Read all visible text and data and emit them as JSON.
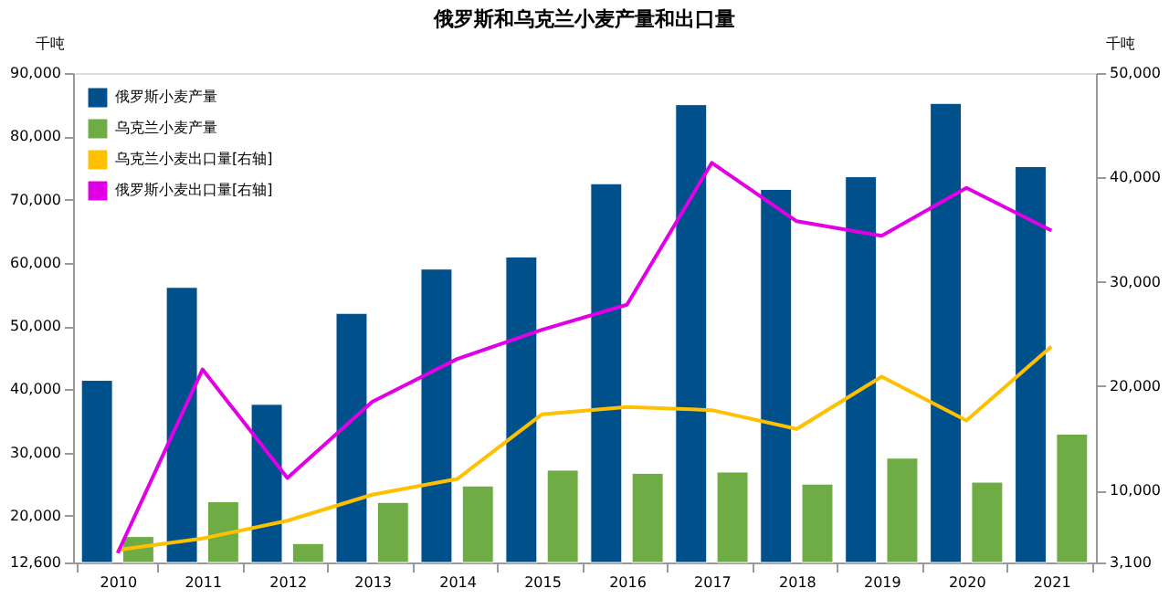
{
  "chart_data": {
    "type": "bar",
    "title": "俄罗斯和乌克兰小麦产量和出口量",
    "ylabel": "千吨",
    "y2label": "千吨",
    "categories": [
      "2010",
      "2011",
      "2012",
      "2013",
      "2014",
      "2015",
      "2016",
      "2017",
      "2018",
      "2019",
      "2020",
      "2021"
    ],
    "series": [
      {
        "name": "俄罗斯小麦产量",
        "color": "#00508c",
        "values": [
          41400,
          56100,
          37600,
          52000,
          59000,
          60900,
          72500,
          85000,
          71600,
          73600,
          85200,
          75200
        ]
      },
      {
        "name": "乌克兰小麦产量",
        "color": "#6fac46",
        "values": [
          16700,
          22200,
          15600,
          22100,
          24700,
          27200,
          26700,
          26900,
          25000,
          29100,
          25300,
          32900
        ]
      },
      {
        "name": "乌克兰小麦出口量[右轴]",
        "type": "line",
        "axis": "y2",
        "color": "#ffc000",
        "values": [
          4300,
          5400,
          7100,
          9600,
          11100,
          17300,
          18000,
          17700,
          15900,
          20900,
          16700,
          23800
        ]
      },
      {
        "name": "俄罗斯小麦出口量[右轴]",
        "type": "line",
        "axis": "y2",
        "color": "#e100e6",
        "values": [
          4000,
          21600,
          11200,
          18500,
          22600,
          25400,
          27800,
          41400,
          35800,
          34400,
          39000,
          34900
        ]
      }
    ],
    "ylim": [
      12600,
      90000
    ],
    "yticks": [
      {
        "value": 12600,
        "label": "12,600"
      },
      {
        "value": 20000,
        "label": "20,000"
      },
      {
        "value": 30000,
        "label": "30,000"
      },
      {
        "value": 40000,
        "label": "40,000"
      },
      {
        "value": 50000,
        "label": "50,000"
      },
      {
        "value": 60000,
        "label": "60,000"
      },
      {
        "value": 70000,
        "label": "70,000"
      },
      {
        "value": 80000,
        "label": "80,000"
      },
      {
        "value": 90000,
        "label": "90,000"
      }
    ],
    "y2lim": [
      3100,
      50000
    ],
    "y2ticks": [
      {
        "value": 3100,
        "label": "3,100"
      },
      {
        "value": 10000,
        "label": "10,000"
      },
      {
        "value": 20000,
        "label": "20,000"
      },
      {
        "value": 30000,
        "label": "30,000"
      },
      {
        "value": 40000,
        "label": "40,000"
      },
      {
        "value": 50000,
        "label": "50,000"
      }
    ],
    "legend": "top left",
    "grid": false,
    "marker": "none",
    "line_style": "solid"
  }
}
